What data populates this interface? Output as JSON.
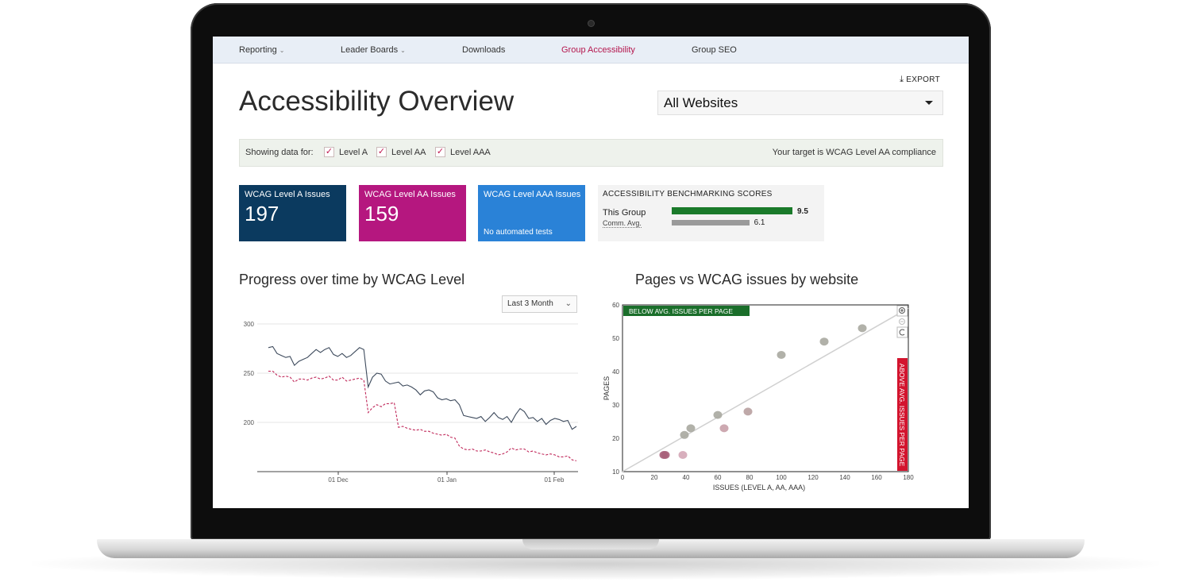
{
  "nav": {
    "items": [
      {
        "label": "Reporting",
        "has_dropdown": true,
        "active": false
      },
      {
        "label": "Leader Boards",
        "has_dropdown": true,
        "active": false
      },
      {
        "label": "Downloads",
        "has_dropdown": false,
        "active": false
      },
      {
        "label": "Group Accessibility",
        "has_dropdown": false,
        "active": true
      },
      {
        "label": "Group SEO",
        "has_dropdown": false,
        "active": false
      }
    ]
  },
  "header": {
    "export_label": "EXPORT",
    "title": "Accessibility Overview",
    "website_select": "All Websites"
  },
  "filter": {
    "label": "Showing data for:",
    "levels": [
      {
        "label": "Level A",
        "checked": true
      },
      {
        "label": "Level AA",
        "checked": true
      },
      {
        "label": "Level AAA",
        "checked": true
      }
    ],
    "target_text": "Your target is WCAG Level AA compliance"
  },
  "cards": [
    {
      "title": "WCAG Level A Issues",
      "value": "197",
      "note": "",
      "color": "#0b3a5f"
    },
    {
      "title": "WCAG Level AA Issues",
      "value": "159",
      "note": "",
      "color": "#b5177f"
    },
    {
      "title": "WCAG Level AAA Issues",
      "value": "",
      "note": "No automated tests",
      "color": "#2a82d7"
    }
  ],
  "benchmark": {
    "title": "ACCESSIBILITY BENCHMARKING SCORES",
    "max": 10,
    "rows": [
      {
        "label": "This Group",
        "value": 9.5,
        "value_label": "9.5",
        "color": "#1a7a2a"
      },
      {
        "label": "Comm. Avg.",
        "value": 6.1,
        "value_label": "6.1",
        "color": "#9a9a9a"
      }
    ]
  },
  "progress_chart": {
    "title": "Progress over time by WCAG Level",
    "range_label": "Last 3 Month",
    "chart_data": {
      "type": "line",
      "y_ticks": [
        "300",
        "250",
        "200"
      ],
      "x_ticks": [
        "01 Dec",
        "01 Jan",
        "01 Feb"
      ],
      "ylim": [
        150,
        300
      ],
      "colors": {
        "Level A": "#3d4a5c",
        "Level AA": "#c0285a"
      },
      "series": [
        {
          "name": "Level A",
          "values": [
            276,
            277,
            270,
            268,
            266,
            267,
            258,
            262,
            264,
            266,
            270,
            274,
            271,
            274,
            276,
            269,
            267,
            270,
            266,
            268,
            272,
            276,
            274,
            236,
            246,
            250,
            249,
            242,
            239,
            240,
            241,
            237,
            238,
            236,
            233,
            228,
            232,
            233,
            231,
            225,
            223,
            224,
            222,
            223,
            218,
            207,
            206,
            205,
            204,
            206,
            201,
            205,
            210,
            205,
            203,
            206,
            200,
            208,
            214,
            211,
            204,
            205,
            201,
            204,
            198,
            202,
            204,
            203,
            201,
            202,
            193,
            196
          ]
        },
        {
          "name": "Level AA",
          "values": [
            252,
            252,
            248,
            246,
            247,
            246,
            241,
            244,
            244,
            243,
            245,
            246,
            244,
            245,
            247,
            243,
            243,
            246,
            242,
            243,
            244,
            245,
            243,
            210,
            215,
            218,
            216,
            219,
            219,
            220,
            195,
            196,
            194,
            193,
            192,
            193,
            191,
            191,
            189,
            188,
            187,
            188,
            185,
            184,
            176,
            173,
            172,
            173,
            171,
            171,
            172,
            170,
            169,
            167,
            168,
            170,
            174,
            172,
            173,
            173,
            170,
            171,
            169,
            168,
            167,
            168,
            167,
            165,
            165,
            166,
            162,
            161
          ]
        }
      ]
    }
  },
  "scatter_chart": {
    "title": "Pages vs WCAG issues by website",
    "below_label": "BELOW AVG. ISSUES PER PAGE",
    "above_label": "ABOVE AVG. ISSUES PER PAGE",
    "chart_data": {
      "type": "scatter",
      "xlabel": "ISSUES (LEVEL A, AA, AAA)",
      "ylabel": "PAGES",
      "xlim": [
        0,
        180
      ],
      "ylim": [
        10,
        60
      ],
      "x_ticks": [
        "0",
        "20",
        "40",
        "60",
        "80",
        "100",
        "120",
        "140",
        "160",
        "180"
      ],
      "y_ticks": [
        "10",
        "20",
        "30",
        "40",
        "50",
        "60"
      ],
      "trend_line": {
        "x": [
          0,
          180
        ],
        "y": [
          10,
          59
        ]
      },
      "points": [
        {
          "x": 26,
          "y": 15,
          "color": "#a8607a"
        },
        {
          "x": 27,
          "y": 15,
          "color": "#a8607a"
        },
        {
          "x": 38,
          "y": 15,
          "color": "#d4a6b6"
        },
        {
          "x": 39,
          "y": 21,
          "color": "#a9a9a0"
        },
        {
          "x": 43,
          "y": 23,
          "color": "#a9a9a0"
        },
        {
          "x": 60,
          "y": 27,
          "color": "#a9a9a0"
        },
        {
          "x": 64,
          "y": 23,
          "color": "#c8a0a8"
        },
        {
          "x": 79,
          "y": 28,
          "color": "#b8a0a0"
        },
        {
          "x": 100,
          "y": 45,
          "color": "#a9a9a0"
        },
        {
          "x": 127,
          "y": 49,
          "color": "#a9a9a0"
        },
        {
          "x": 151,
          "y": 53,
          "color": "#a9a9a0"
        }
      ]
    }
  }
}
